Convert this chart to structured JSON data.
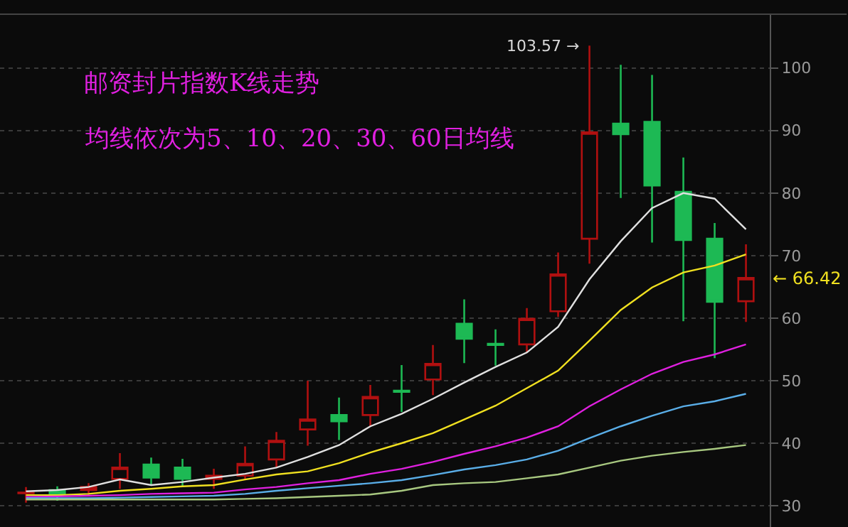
{
  "chart_data": {
    "type": "candlestick",
    "title": "邮资封片指数K线走势",
    "subtitle": "均线依次为5、10、20、30、60日均线",
    "categories": [
      null,
      null,
      null,
      null,
      null,
      null,
      null,
      null,
      null,
      null,
      null,
      null,
      null,
      null,
      null,
      null,
      null,
      null,
      null,
      null,
      null,
      null,
      null,
      null
    ],
    "ohlc": [
      [
        32.0,
        33.0,
        30.5,
        32.1
      ],
      [
        32.5,
        33.1,
        30.8,
        31.9
      ],
      [
        32.5,
        33.6,
        31.7,
        33.0
      ],
      [
        34.3,
        38.4,
        32.7,
        36.1
      ],
      [
        36.6,
        37.7,
        33.3,
        34.5
      ],
      [
        36.1,
        37.5,
        33.0,
        34.3
      ],
      [
        34.3,
        35.9,
        32.7,
        34.8
      ],
      [
        34.8,
        39.5,
        34.1,
        36.7
      ],
      [
        37.4,
        41.8,
        36.1,
        40.4
      ],
      [
        42.2,
        50.0,
        39.6,
        43.8
      ],
      [
        44.5,
        47.3,
        40.5,
        43.5
      ],
      [
        44.5,
        49.3,
        42.6,
        47.4
      ],
      [
        48.4,
        52.5,
        45.0,
        48.2
      ],
      [
        50.2,
        55.7,
        47.7,
        52.7
      ],
      [
        59.1,
        63.0,
        52.8,
        56.7
      ],
      [
        55.9,
        58.2,
        52.4,
        55.7
      ],
      [
        55.8,
        61.6,
        54.5,
        59.9
      ],
      [
        61.1,
        70.5,
        60.2,
        67.0
      ],
      [
        72.7,
        103.57,
        68.7,
        89.7
      ],
      [
        91.1,
        100.5,
        79.2,
        89.4
      ],
      [
        91.4,
        98.9,
        72.1,
        81.2
      ],
      [
        80.2,
        85.7,
        59.5,
        72.5
      ],
      [
        72.7,
        75.2,
        53.6,
        62.6
      ],
      [
        62.7,
        71.8,
        59.4,
        66.42
      ]
    ],
    "colors": [
      "#b01010",
      "#1db954",
      "#b01010",
      "#b01010",
      "#1db954",
      "#1db954",
      "#b01010",
      "#b01010",
      "#b01010",
      "#b01010",
      "#1db954",
      "#b01010",
      "#1db954",
      "#b01010",
      "#1db954",
      "#1db954",
      "#b01010",
      "#b01010",
      "#b01010",
      "#1db954",
      "#1db954",
      "#1db954",
      "#1db954",
      "#b01010"
    ],
    "series": [
      {
        "type": "line",
        "color": "#e0e0e0",
        "values": [
          32.3,
          32.5,
          33.0,
          34.2,
          33.3,
          33.8,
          34.5,
          35.1,
          36.1,
          37.8,
          39.7,
          42.7,
          44.7,
          47.1,
          49.7,
          52.2,
          54.5,
          58.6,
          66.2,
          72.3,
          77.6,
          80.0,
          79.1,
          74.2
        ]
      },
      {
        "type": "line",
        "color": "#f0e020",
        "values": [
          31.7,
          31.7,
          31.9,
          32.4,
          32.7,
          33.1,
          33.3,
          34.2,
          35.0,
          35.5,
          36.8,
          38.5,
          40.0,
          41.6,
          43.8,
          46.0,
          48.8,
          51.6,
          56.4,
          61.3,
          64.9,
          67.3,
          68.4,
          70.2
        ]
      },
      {
        "type": "line",
        "color": "#e020e0",
        "values": [
          31.4,
          31.5,
          31.6,
          31.7,
          31.9,
          32.0,
          32.1,
          32.6,
          33.0,
          33.6,
          34.1,
          35.1,
          35.9,
          37.0,
          38.3,
          39.5,
          40.9,
          42.7,
          45.9,
          48.6,
          51.1,
          53.0,
          54.2,
          55.8
        ]
      },
      {
        "type": "line",
        "color": "#5aaee8",
        "values": [
          31.2,
          31.2,
          31.2,
          31.3,
          31.4,
          31.5,
          31.6,
          31.9,
          32.4,
          32.8,
          33.2,
          33.6,
          34.1,
          34.9,
          35.8,
          36.5,
          37.4,
          38.8,
          40.8,
          42.7,
          44.4,
          45.9,
          46.7,
          47.9
        ]
      },
      {
        "type": "line",
        "color": "#a8c880",
        "values": [
          31.0,
          31.0,
          31.0,
          31.0,
          31.0,
          31.0,
          31.0,
          31.1,
          31.2,
          31.4,
          31.6,
          31.8,
          32.4,
          33.3,
          33.6,
          33.8,
          34.4,
          35.0,
          36.1,
          37.2,
          38.0,
          38.6,
          39.1,
          39.7
        ]
      }
    ],
    "ylim": [
      26.6,
      108.6
    ],
    "yticks": [
      30,
      40,
      50,
      60,
      70,
      80,
      90,
      100
    ],
    "grid": "y",
    "annotations": [
      "103.57 →",
      "← 66.42"
    ]
  }
}
